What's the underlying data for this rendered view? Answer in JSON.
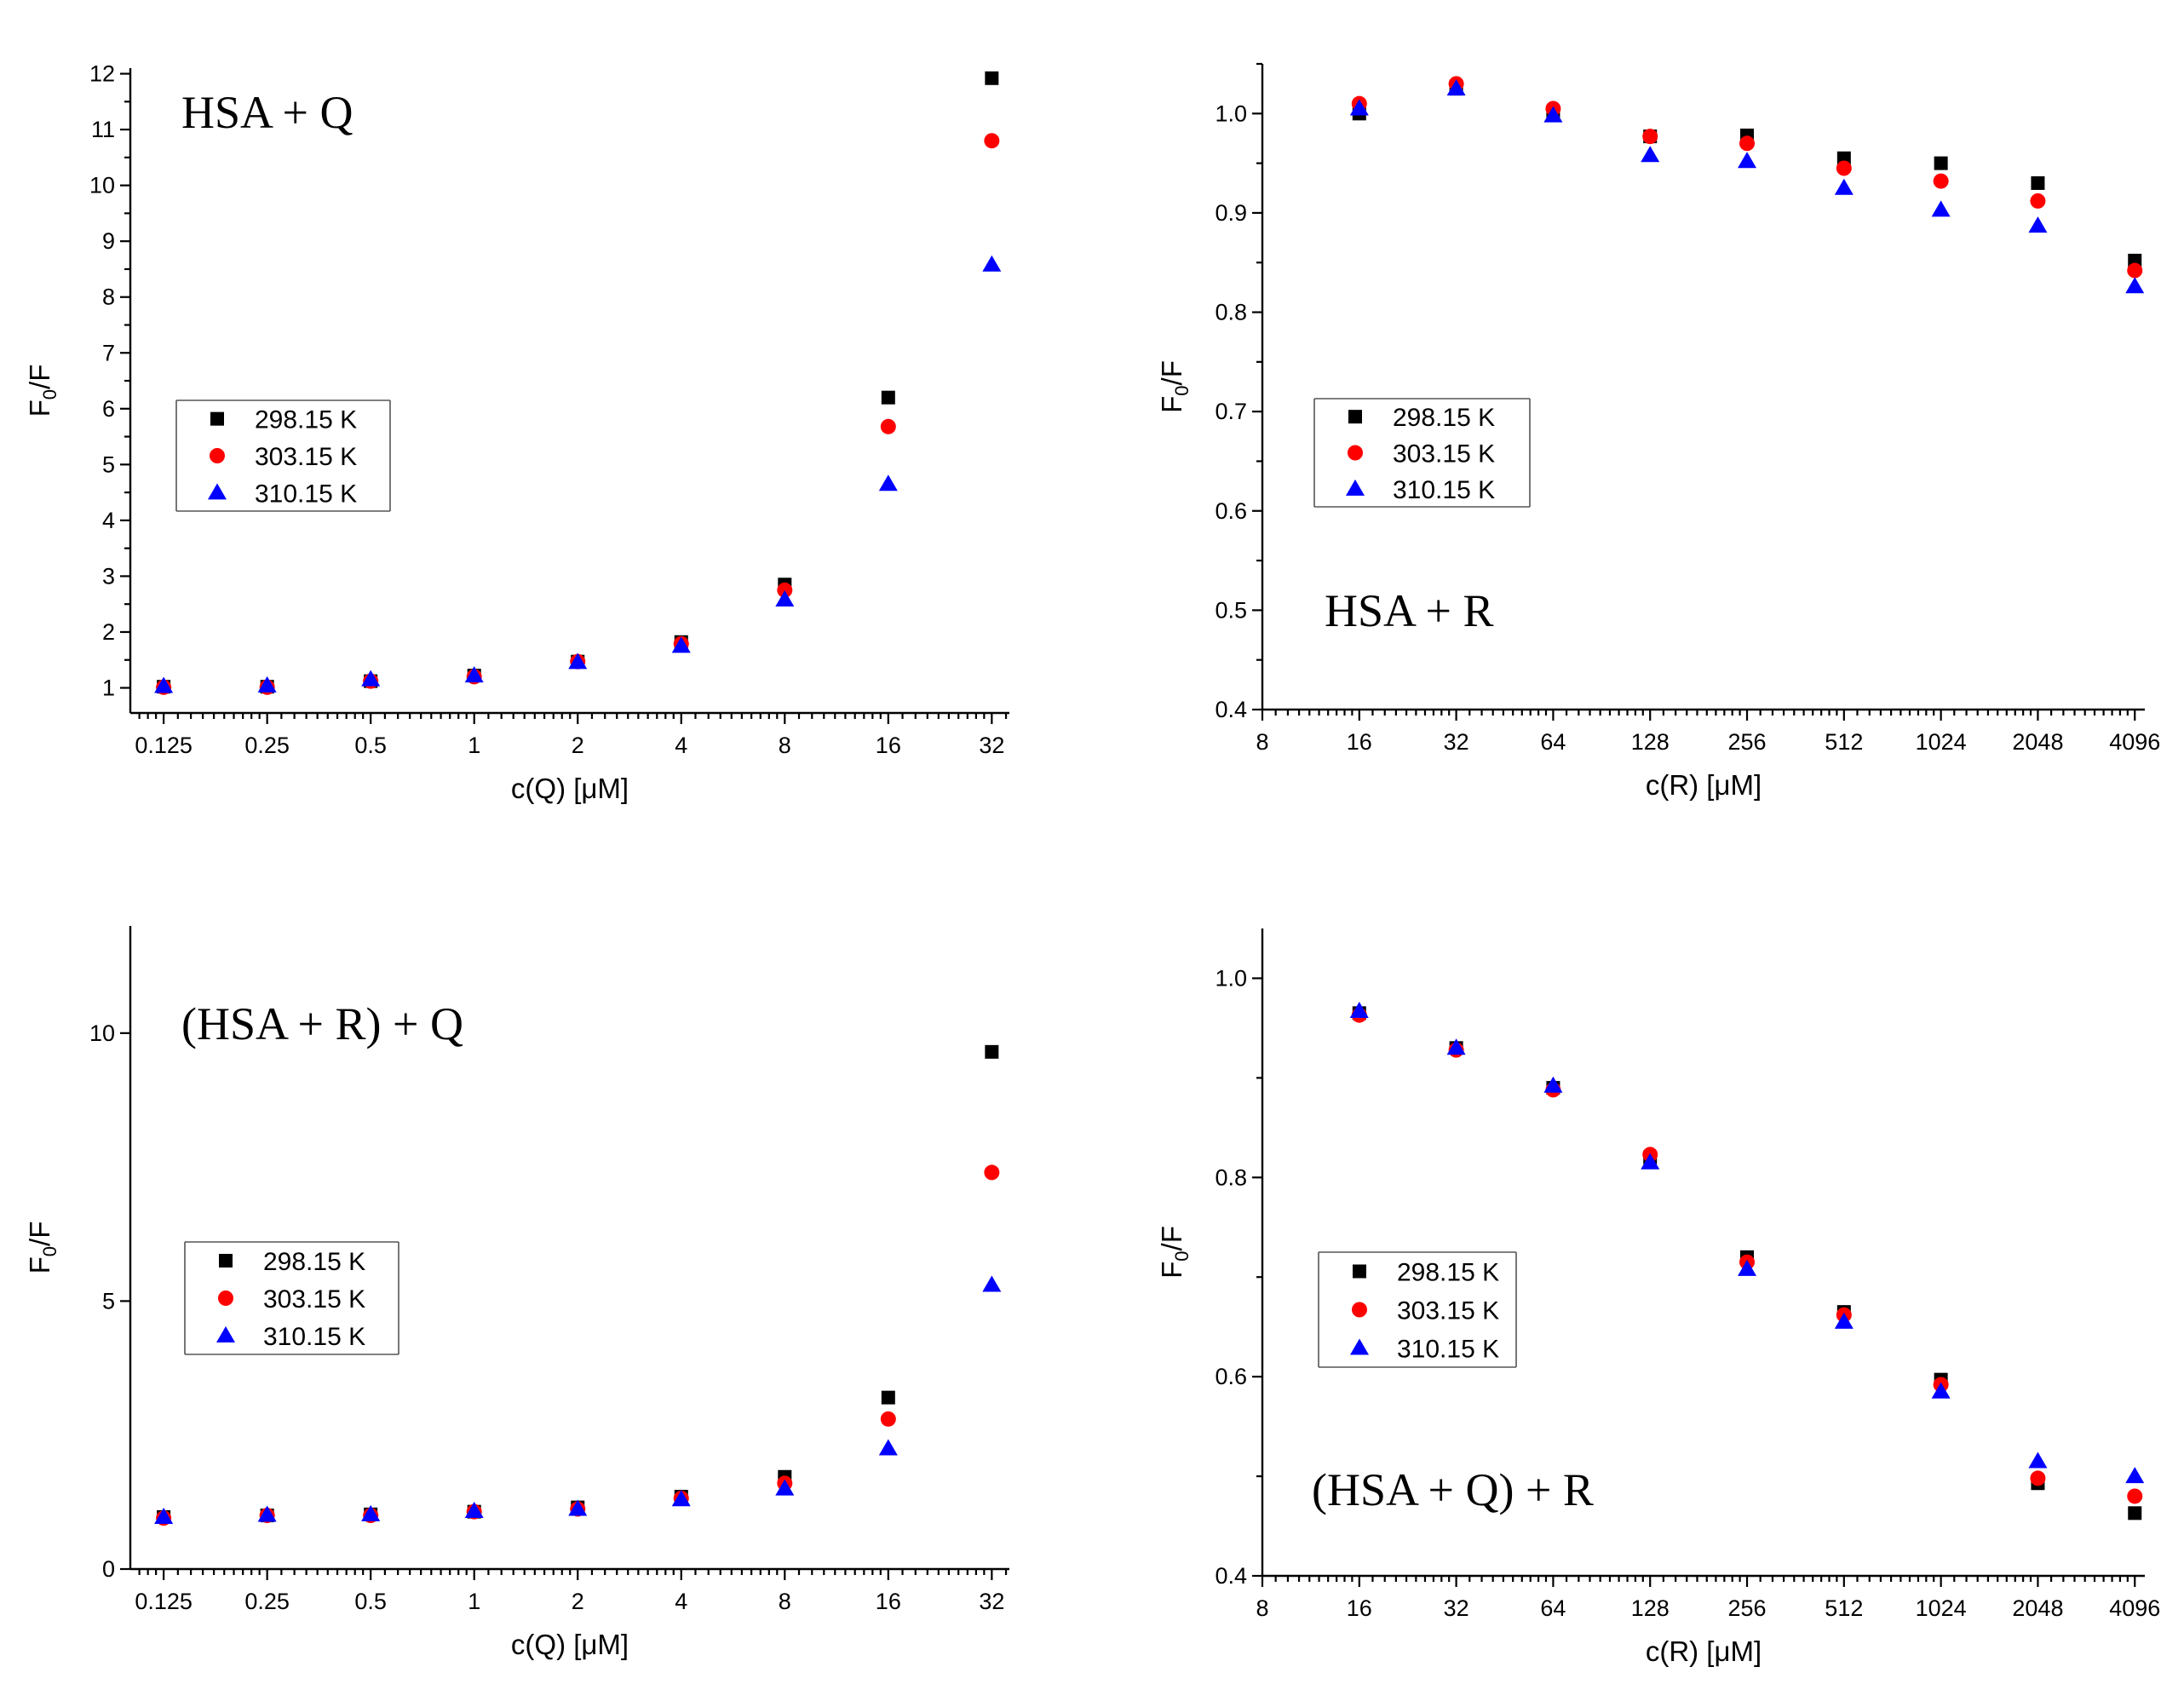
{
  "colors": {
    "298.15 K": "#000000",
    "303.15 K": "#ff0000",
    "310.15 K": "#0000ff"
  },
  "chart_data": [
    {
      "type": "scatter",
      "title": "HSA + Q",
      "xlabel": "c(Q) [μM]",
      "ylabel": "F0/F",
      "xscale": "log2",
      "xticks": [
        "0.125",
        "0.25",
        "0.5",
        "1",
        "2",
        "4",
        "8",
        "16",
        "32"
      ],
      "x": [
        0.125,
        0.25,
        0.5,
        1,
        2,
        4,
        8,
        16,
        32
      ],
      "xlim": [
        0.1,
        36
      ],
      "ylim": [
        0.55,
        12.1
      ],
      "yticks": [
        "1",
        "2",
        "3",
        "4",
        "5",
        "6",
        "7",
        "8",
        "9",
        "10",
        "11",
        "12"
      ],
      "yminor": true,
      "legend": "middle-left",
      "series": [
        {
          "name": "298.15 K",
          "marker": "square",
          "values": [
            1.02,
            1.02,
            1.12,
            1.22,
            1.47,
            1.82,
            2.85,
            6.2,
            11.92
          ]
        },
        {
          "name": "303.15 K",
          "marker": "circle",
          "values": [
            1.01,
            1.01,
            1.12,
            1.2,
            1.47,
            1.79,
            2.75,
            5.68,
            10.8
          ]
        },
        {
          "name": "310.15 K",
          "marker": "triangle",
          "values": [
            1.03,
            1.04,
            1.15,
            1.22,
            1.46,
            1.75,
            2.58,
            4.65,
            8.58
          ]
        }
      ]
    },
    {
      "type": "scatter",
      "title": "HSA + R",
      "xlabel": "c(R) [μM]",
      "ylabel": "F0/F",
      "xscale": "log2",
      "xticks": [
        "8",
        "16",
        "32",
        "64",
        "128",
        "256",
        "512",
        "1024",
        "2048",
        "4096"
      ],
      "x": [
        16,
        32,
        64,
        128,
        256,
        512,
        1024,
        2048,
        4096
      ],
      "xlim": [
        8,
        4400
      ],
      "ylim": [
        0.4,
        1.05
      ],
      "yticks": [
        "0.4",
        "0.5",
        "0.6",
        "0.7",
        "0.8",
        "0.9",
        "1.0"
      ],
      "yminor": true,
      "legend": "middle-left",
      "series": [
        {
          "name": "298.15 K",
          "marker": "square",
          "values": [
            1.0,
            1.025,
            1.0,
            0.977,
            0.978,
            0.955,
            0.95,
            0.93,
            0.852
          ]
        },
        {
          "name": "303.15 K",
          "marker": "circle",
          "values": [
            1.01,
            1.03,
            1.005,
            0.977,
            0.97,
            0.945,
            0.932,
            0.912,
            0.842
          ]
        },
        {
          "name": "310.15 K",
          "marker": "triangle",
          "values": [
            1.005,
            1.025,
            0.998,
            0.958,
            0.952,
            0.925,
            0.903,
            0.887,
            0.826
          ]
        }
      ]
    },
    {
      "type": "scatter",
      "title": "(HSA + R) + Q",
      "xlabel": "c(Q) [μM]",
      "ylabel": "F0/F",
      "xscale": "log2",
      "xticks": [
        "0.125",
        "0.25",
        "0.5",
        "1",
        "2",
        "4",
        "8",
        "16",
        "32"
      ],
      "x": [
        0.125,
        0.25,
        0.5,
        1,
        2,
        4,
        8,
        16,
        32
      ],
      "xlim": [
        0.1,
        36
      ],
      "ylim": [
        0,
        12
      ],
      "yticks": [
        "0",
        "5",
        "10"
      ],
      "yminor": false,
      "legend": "middle-left",
      "series": [
        {
          "name": "298.15 K",
          "marker": "square",
          "values": [
            0.97,
            1.0,
            1.02,
            1.07,
            1.15,
            1.35,
            1.72,
            3.2,
            9.65
          ]
        },
        {
          "name": "303.15 K",
          "marker": "circle",
          "values": [
            0.95,
            1.0,
            1.0,
            1.07,
            1.12,
            1.32,
            1.6,
            2.8,
            7.4
          ]
        },
        {
          "name": "310.15 K",
          "marker": "triangle",
          "values": [
            0.97,
            1.01,
            1.02,
            1.08,
            1.12,
            1.3,
            1.5,
            2.25,
            5.3
          ]
        }
      ]
    },
    {
      "type": "scatter",
      "title": "(HSA + Q) + R",
      "xlabel": "c(R) [μM]",
      "ylabel": "F0/F",
      "xscale": "log2",
      "xticks": [
        "8",
        "16",
        "32",
        "64",
        "128",
        "256",
        "512",
        "1024",
        "2048",
        "4096"
      ],
      "x": [
        16,
        32,
        64,
        128,
        256,
        512,
        1024,
        2048,
        4096
      ],
      "xlim": [
        8,
        4400
      ],
      "ylim": [
        0.4,
        1.05
      ],
      "yticks": [
        "0.4",
        "0.6",
        "0.8",
        "1.0"
      ],
      "yminor": true,
      "legend": "middle-left",
      "series": [
        {
          "name": "298.15 K",
          "marker": "square",
          "values": [
            0.965,
            0.93,
            0.89,
            0.82,
            0.72,
            0.665,
            0.597,
            0.493,
            0.463
          ]
        },
        {
          "name": "303.15 K",
          "marker": "circle",
          "values": [
            0.963,
            0.928,
            0.888,
            0.823,
            0.715,
            0.662,
            0.592,
            0.498,
            0.48
          ]
        },
        {
          "name": "310.15 K",
          "marker": "triangle",
          "values": [
            0.967,
            0.93,
            0.892,
            0.815,
            0.708,
            0.655,
            0.585,
            0.515,
            0.5
          ]
        }
      ]
    }
  ]
}
